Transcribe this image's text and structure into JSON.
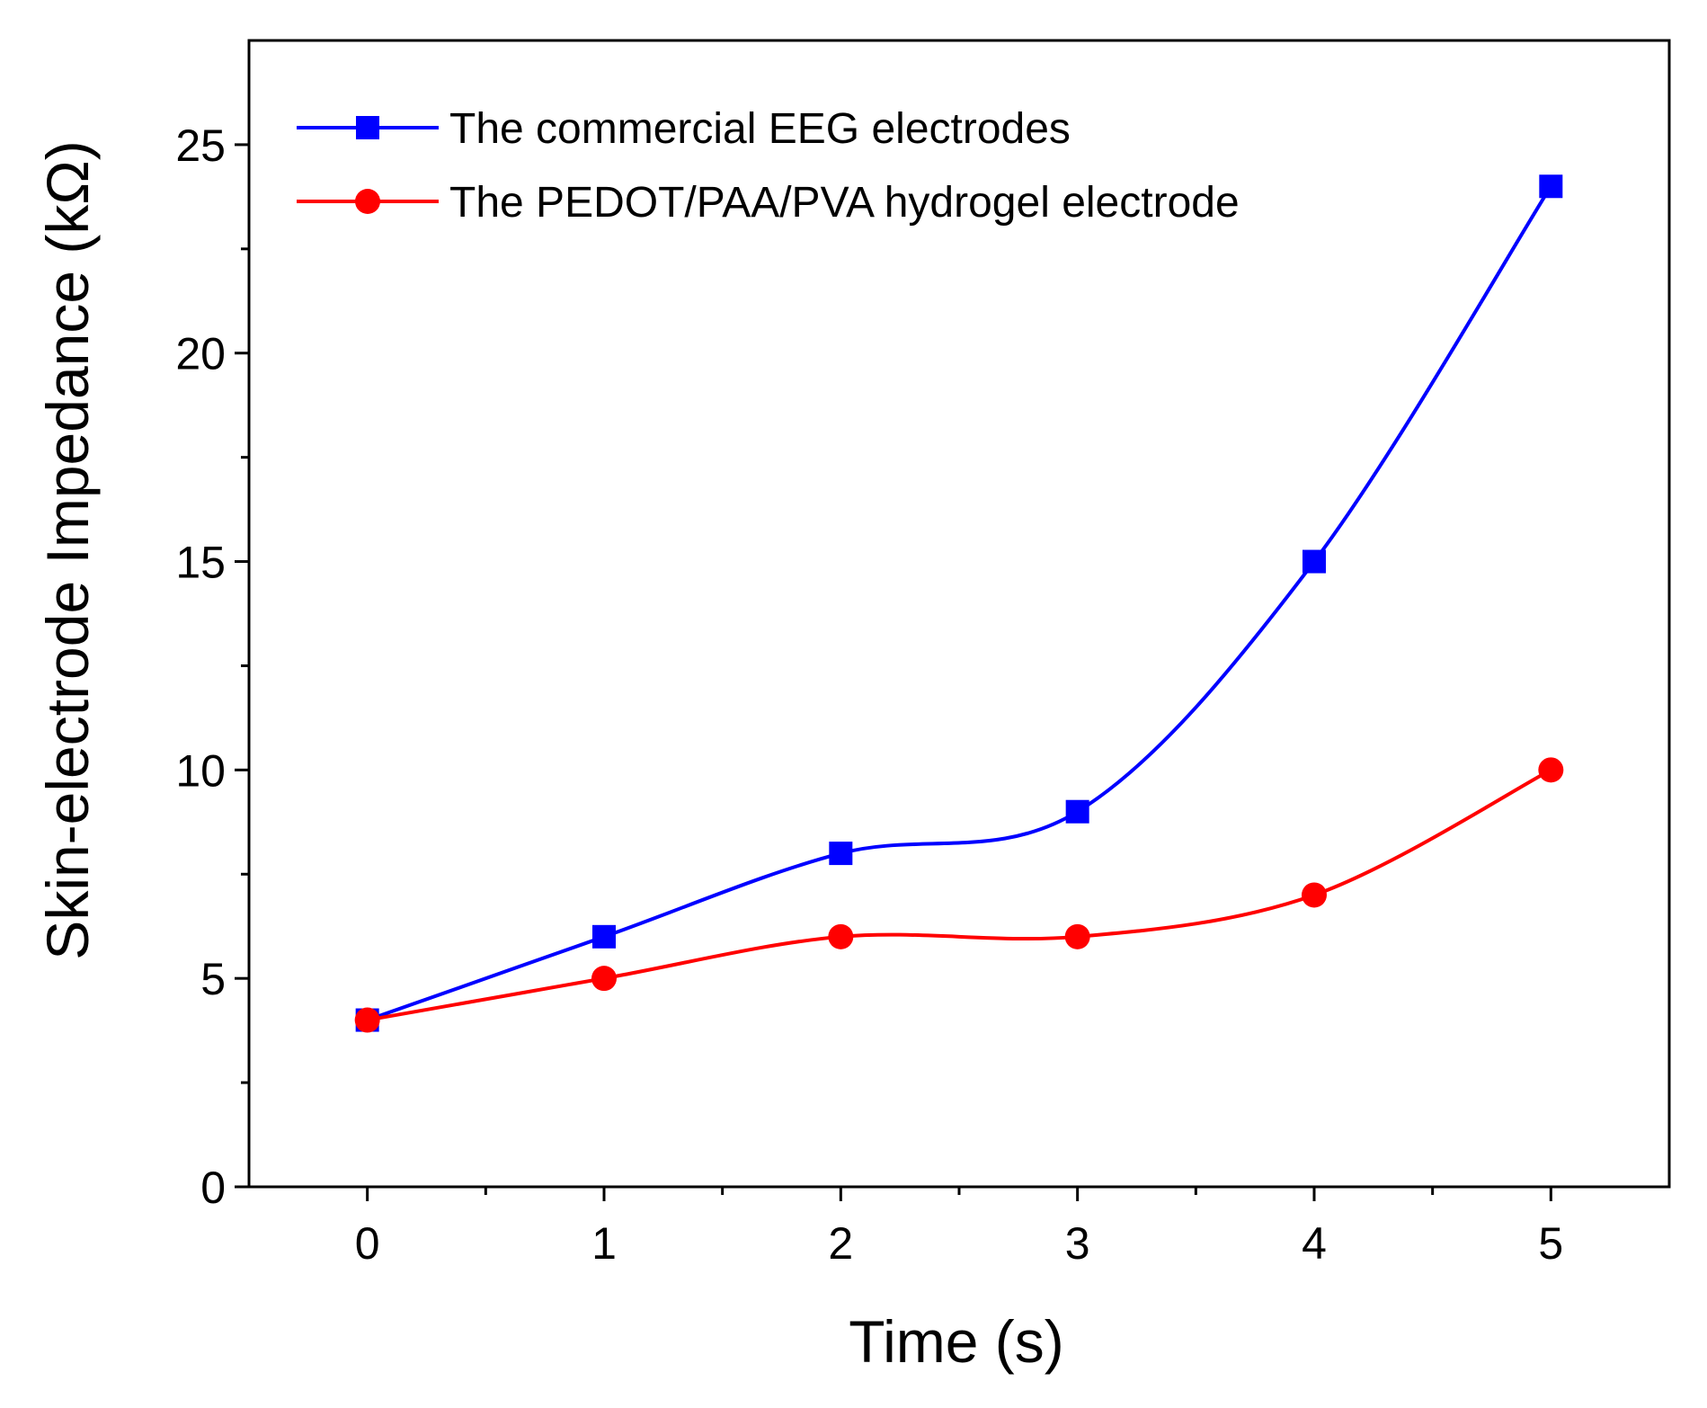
{
  "chart_data": {
    "type": "line",
    "title": "",
    "xlabel": "Time (s)",
    "ylabel": "Skin-electrode Impedance (kΩ)",
    "x": [
      0,
      1,
      2,
      3,
      4,
      5
    ],
    "xlim": [
      -0.5,
      5.5
    ],
    "ylim": [
      0,
      27.5
    ],
    "xticks": [
      0,
      1,
      2,
      3,
      4,
      5
    ],
    "yticks": [
      0,
      5,
      10,
      15,
      20,
      25
    ],
    "yminor": [
      2.5,
      7.5,
      12.5,
      17.5,
      22.5
    ],
    "xminor": [
      0.5,
      1.5,
      2.5,
      3.5,
      4.5
    ],
    "legend_position": "top-left",
    "grid": false,
    "series": [
      {
        "name": "The commercial EEG electrodes",
        "values": [
          4,
          6,
          8,
          9,
          15,
          24
        ],
        "color": "#0000ff",
        "marker": "square"
      },
      {
        "name": "The PEDOT/PAA/PVA hydrogel electrode",
        "values": [
          4,
          5,
          6,
          6,
          7,
          10
        ],
        "color": "#ff0000",
        "marker": "circle"
      }
    ]
  }
}
